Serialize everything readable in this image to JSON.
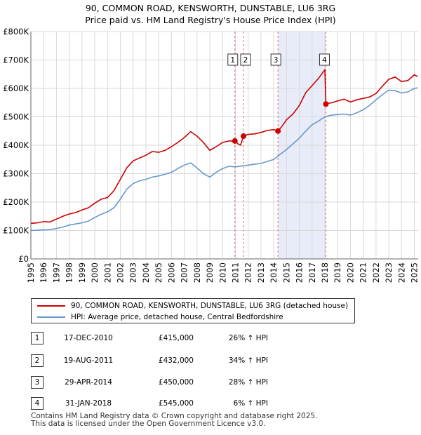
{
  "chart_data": {
    "type": "line",
    "title": "90, COMMON ROAD, KENSWORTH, DUNSTABLE, LU6 3RG",
    "subtitle": "Price paid vs. HM Land Registry's House Price Index (HPI)",
    "xlabel": "",
    "ylabel": "",
    "xlim": [
      1995,
      2025.3
    ],
    "ylim": [
      0,
      800000
    ],
    "y_ticks": [
      0,
      100000,
      200000,
      300000,
      400000,
      500000,
      600000,
      700000,
      800000
    ],
    "y_tick_labels": [
      "£0",
      "£100K",
      "£200K",
      "£300K",
      "£400K",
      "£500K",
      "£600K",
      "£700K",
      "£800K"
    ],
    "x_ticks": [
      "1995",
      "1996",
      "1997",
      "1998",
      "1999",
      "2000",
      "2001",
      "2002",
      "2003",
      "2004",
      "2005",
      "2006",
      "2007",
      "2008",
      "2009",
      "2010",
      "2011",
      "2012",
      "2013",
      "2014",
      "2015",
      "2016",
      "2017",
      "2018",
      "2019",
      "2020",
      "2021",
      "2022",
      "2023",
      "2024",
      "2025"
    ],
    "grid": true,
    "series": [
      {
        "name": "90, COMMON ROAD, KENSWORTH, DUNSTABLE, LU6 3RG (detached house)",
        "color": "#cc0000",
        "x": [
          1995.0,
          1995.5,
          1996.0,
          1996.5,
          1997.0,
          1997.5,
          1998.0,
          1998.5,
          1999.0,
          1999.5,
          2000.0,
          2000.5,
          2001.0,
          2001.5,
          2002.0,
          2002.5,
          2003.0,
          2003.5,
          2004.0,
          2004.5,
          2005.0,
          2005.5,
          2006.0,
          2006.5,
          2007.0,
          2007.5,
          2008.0,
          2008.5,
          2009.0,
          2009.5,
          2010.0,
          2010.5,
          2010.96,
          2011.2,
          2011.4,
          2011.63,
          2012.0,
          2012.5,
          2013.0,
          2013.5,
          2014.0,
          2014.33,
          2014.7,
          2015.0,
          2015.5,
          2016.0,
          2016.5,
          2017.0,
          2017.5,
          2017.9,
          2018.0,
          2018.08,
          2018.3,
          2018.6,
          2019.0,
          2019.5,
          2020.0,
          2020.5,
          2021.0,
          2021.5,
          2022.0,
          2022.5,
          2023.0,
          2023.5,
          2024.0,
          2024.5,
          2025.0,
          2025.25
        ],
        "values": [
          125000,
          127000,
          131000,
          130000,
          140000,
          150000,
          158000,
          163000,
          172000,
          180000,
          196000,
          210000,
          216000,
          240000,
          280000,
          320000,
          345000,
          355000,
          365000,
          378000,
          375000,
          382000,
          395000,
          410000,
          427000,
          448000,
          432000,
          410000,
          382000,
          395000,
          410000,
          415000,
          415000,
          405000,
          400000,
          432000,
          438000,
          440000,
          445000,
          452000,
          455000,
          450000,
          470000,
          490000,
          510000,
          540000,
          585000,
          610000,
          635000,
          660000,
          665000,
          545000,
          548000,
          550000,
          556000,
          562000,
          552000,
          560000,
          565000,
          570000,
          582000,
          608000,
          632000,
          640000,
          624000,
          628000,
          648000,
          642000
        ]
      },
      {
        "name": "HPI: Average price, detached house, Central Bedfordshire",
        "color": "#6699cc",
        "x": [
          1995.0,
          1995.5,
          1996.0,
          1996.5,
          1997.0,
          1997.5,
          1998.0,
          1998.5,
          1999.0,
          1999.5,
          2000.0,
          2000.5,
          2001.0,
          2001.5,
          2002.0,
          2002.5,
          2003.0,
          2003.5,
          2004.0,
          2004.5,
          2005.0,
          2005.5,
          2006.0,
          2006.5,
          2007.0,
          2007.5,
          2008.0,
          2008.5,
          2009.0,
          2009.5,
          2010.0,
          2010.5,
          2011.0,
          2011.5,
          2012.0,
          2012.5,
          2013.0,
          2013.5,
          2014.0,
          2014.5,
          2015.0,
          2015.5,
          2016.0,
          2016.5,
          2017.0,
          2017.5,
          2018.0,
          2018.5,
          2019.0,
          2019.5,
          2020.0,
          2020.5,
          2021.0,
          2021.5,
          2022.0,
          2022.5,
          2023.0,
          2023.5,
          2024.0,
          2024.5,
          2025.0,
          2025.25
        ],
        "values": [
          100000,
          101000,
          102000,
          103000,
          107000,
          112000,
          119000,
          123000,
          127000,
          133000,
          146000,
          157000,
          166000,
          180000,
          210000,
          245000,
          265000,
          275000,
          280000,
          288000,
          292000,
          298000,
          305000,
          318000,
          330000,
          338000,
          320000,
          300000,
          288000,
          305000,
          318000,
          326000,
          324000,
          327000,
          330000,
          333000,
          336000,
          343000,
          350000,
          368000,
          385000,
          405000,
          425000,
          450000,
          472000,
          485000,
          500000,
          506000,
          508000,
          510000,
          506000,
          514000,
          525000,
          540000,
          560000,
          578000,
          594000,
          592000,
          584000,
          588000,
          600000,
          602000
        ]
      }
    ],
    "sales": [
      {
        "label": "1",
        "x": 2010.96,
        "price": 415000
      },
      {
        "label": "2",
        "x": 2011.63,
        "price": 432000
      },
      {
        "label": "3",
        "x": 2014.33,
        "price": 450000
      },
      {
        "label": "4",
        "x": 2018.08,
        "price": 545000
      }
    ]
  },
  "legend": {
    "red_label": "90, COMMON ROAD, KENSWORTH, DUNSTABLE, LU6 3RG (detached house)",
    "blue_label": "HPI: Average price, detached house, Central Bedfordshire"
  },
  "transactions": [
    {
      "num": "1",
      "date": "17-DEC-2010",
      "price": "£415,000",
      "hpi": "26% ↑ HPI"
    },
    {
      "num": "2",
      "date": "19-AUG-2011",
      "price": "£432,000",
      "hpi": "34% ↑ HPI"
    },
    {
      "num": "3",
      "date": "29-APR-2014",
      "price": "£450,000",
      "hpi": "28% ↑ HPI"
    },
    {
      "num": "4",
      "date": "31-JAN-2018",
      "price": "£545,000",
      "hpi": "6% ↑ HPI"
    }
  ],
  "footer": {
    "line1": "Contains HM Land Registry data © Crown copyright and database right 2025.",
    "line2": "This data is licensed under the Open Government Licence v3.0."
  }
}
